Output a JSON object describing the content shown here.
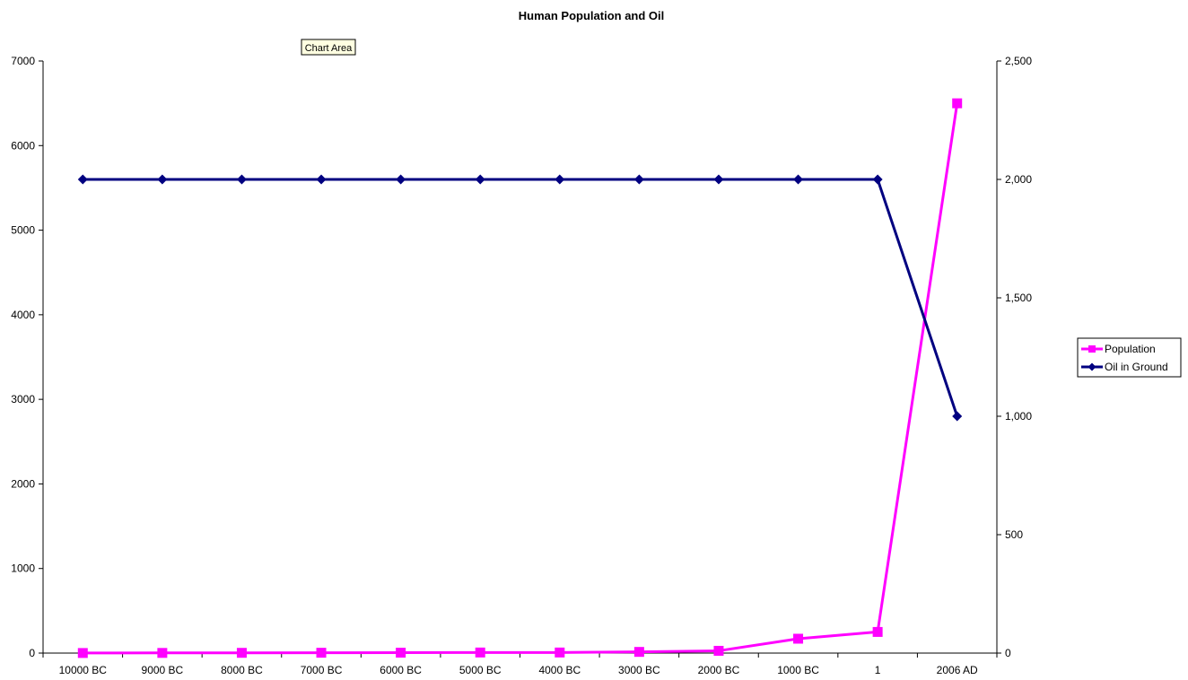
{
  "chart_data": {
    "type": "line",
    "title": "Human Population and Oil",
    "tooltip": "Chart Area",
    "categories": [
      "10000 BC",
      "9000 BC",
      "8000 BC",
      "7000 BC",
      "6000 BC",
      "5000 BC",
      "4000 BC",
      "3000 BC",
      "2000 BC",
      "1000 BC",
      "1",
      "2006 AD"
    ],
    "y_left": {
      "min": 0,
      "max": 7000,
      "ticks": [
        "0",
        "1000",
        "2000",
        "3000",
        "4000",
        "5000",
        "6000",
        "7000"
      ],
      "tick_values": [
        0,
        1000,
        2000,
        3000,
        4000,
        5000,
        6000,
        7000
      ]
    },
    "y_right": {
      "min": 0,
      "max": 2500,
      "ticks": [
        "0",
        "500",
        "1,000",
        "1,500",
        "2,000",
        "2,500"
      ],
      "tick_values": [
        0,
        500,
        1000,
        1500,
        2000,
        2500
      ]
    },
    "series": [
      {
        "name": "Population",
        "axis": "left",
        "color": "#ff00ff",
        "marker": "square",
        "values": [
          1,
          2,
          3,
          4,
          5,
          7,
          7,
          14,
          27,
          170,
          250,
          6500
        ]
      },
      {
        "name": "Oil in Ground",
        "axis": "right",
        "color": "#000080",
        "marker": "diamond",
        "values": [
          2000,
          2000,
          2000,
          2000,
          2000,
          2000,
          2000,
          2000,
          2000,
          2000,
          2000,
          1000
        ]
      }
    ],
    "legend": "right",
    "grid": false
  }
}
